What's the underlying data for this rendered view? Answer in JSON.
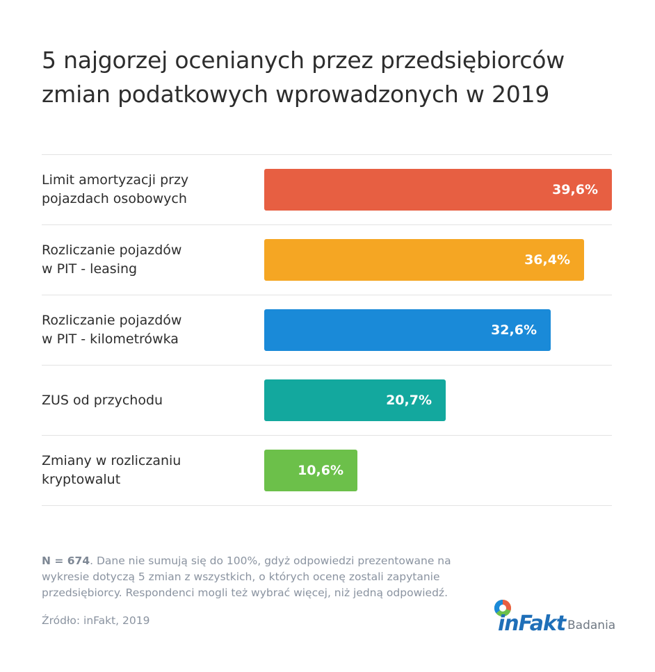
{
  "title": "5 najgorzej ocenianych przez przedsiębiorców zmian podatkowych wprowadzonych w 2019",
  "chart_data": {
    "type": "bar",
    "orientation": "horizontal",
    "categories": [
      "Limit amortyzacji przy\npojazdach osobowych",
      "Rozliczanie pojazdów\nw PIT - leasing",
      "Rozliczanie pojazdów\nw PIT - kilometrówka",
      "ZUS od przychodu",
      "Zmiany w rozliczaniu\nkryptowalut"
    ],
    "values": [
      39.6,
      36.4,
      32.6,
      20.7,
      10.6
    ],
    "value_labels": [
      "39,6%",
      "36,4%",
      "32,6%",
      "20,7%",
      "10,6%"
    ],
    "colors": [
      "#e75f42",
      "#f5a623",
      "#1a8ad8",
      "#13a89e",
      "#6cc04a"
    ],
    "xlim": [
      0,
      39.6
    ],
    "grid": false,
    "legend": "none"
  },
  "note": {
    "n_label": "N = 674",
    "text": ". Dane nie sumują się do 100%, gdyż odpowiedzi prezentowane na wykresie dotyczą 5 zmian z wszystkich, o których ocenę zostali zapytanie przedsiębiorcy. Respondenci mogli też wybrać więcej, niż jedną odpowiedź."
  },
  "source": "Źródło: inFakt, 2019",
  "logo": {
    "word": "inFakt",
    "sub": "Badania",
    "icon": "infakt-logo-icon"
  }
}
